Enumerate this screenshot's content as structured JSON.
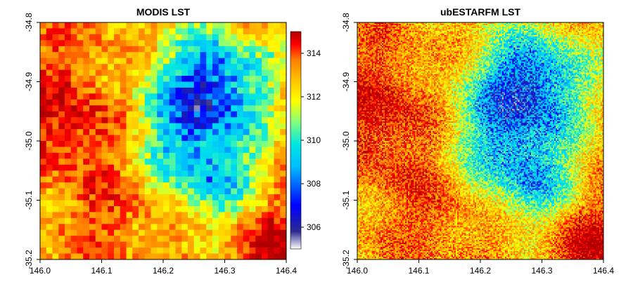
{
  "chart_data": [
    {
      "type": "heatmap",
      "title": "MODIS LST",
      "xlabel": "",
      "ylabel": "",
      "xlim": [
        146.0,
        146.4
      ],
      "ylim": [
        -35.2,
        -34.8
      ],
      "x_ticks": [
        "146.0",
        "146.1",
        "146.2",
        "146.3",
        "146.4"
      ],
      "y_ticks": [
        "-34.8",
        "-34.9",
        "-35.0",
        "-35.1",
        "-35.2"
      ],
      "value_range": [
        305,
        315
      ],
      "colorbar_ticks": [
        "314",
        "312",
        "310",
        "308",
        "306"
      ],
      "colorbar_values": [
        314,
        312,
        310,
        308,
        306
      ],
      "colormap": [
        "#ffffff",
        "#2b2b8f",
        "#0000ff",
        "#00bfff",
        "#00e5e5",
        "#7fff7f",
        "#ffff00",
        "#ffc000",
        "#ff7f00",
        "#ff0000",
        "#b00000"
      ],
      "grid_cells": 40
    },
    {
      "type": "heatmap",
      "title": "ubESTARFM LST",
      "xlabel": "",
      "ylabel": "",
      "xlim": [
        146.0,
        146.4
      ],
      "ylim": [
        -35.2,
        -34.8
      ],
      "x_ticks": [
        "146.0",
        "146.1",
        "146.2",
        "146.3",
        "146.4"
      ],
      "y_ticks": [
        "-34.8",
        "-34.9",
        "-35.0",
        "-35.1",
        "-35.2"
      ],
      "value_range": [
        305,
        315
      ],
      "grid_cells": 170
    }
  ]
}
